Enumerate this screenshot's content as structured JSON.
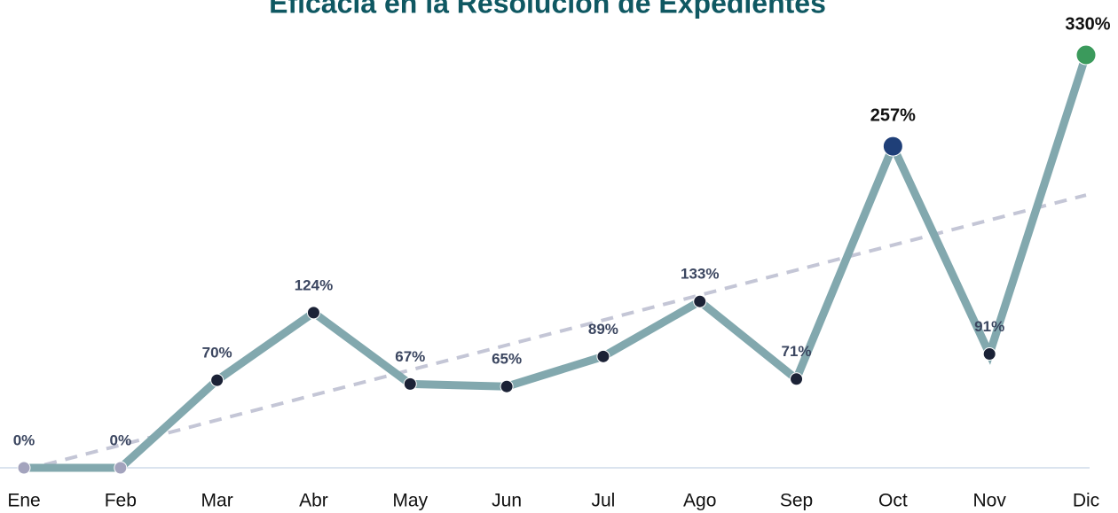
{
  "chart_data": {
    "type": "line",
    "title": "Eficacia en la Resolución de Expedientes",
    "categories": [
      "Ene",
      "Feb",
      "Mar",
      "Abr",
      "May",
      "Jun",
      "Jul",
      "Ago",
      "Sep",
      "Oct",
      "Nov",
      "Dic"
    ],
    "values": [
      0,
      0,
      70,
      124,
      67,
      65,
      89,
      133,
      71,
      257,
      91,
      330
    ],
    "value_labels": [
      "0%",
      "0%",
      "70%",
      "124%",
      "67%",
      "65%",
      "89%",
      "133%",
      "71%",
      "257%",
      "91%",
      "330%"
    ],
    "color": "#82a8ae",
    "marker_colors": [
      "#a3a3bd",
      "#a3a3bd",
      "#1b2236",
      "#1b2236",
      "#1b2236",
      "#1b2236",
      "#1b2236",
      "#1b2236",
      "#1b2236",
      "#1f3f78",
      "#1b2236",
      "#3b9a5c"
    ],
    "trendline": true,
    "trendline_color": "#c4c6d6",
    "ylim": [
      0,
      330
    ]
  }
}
